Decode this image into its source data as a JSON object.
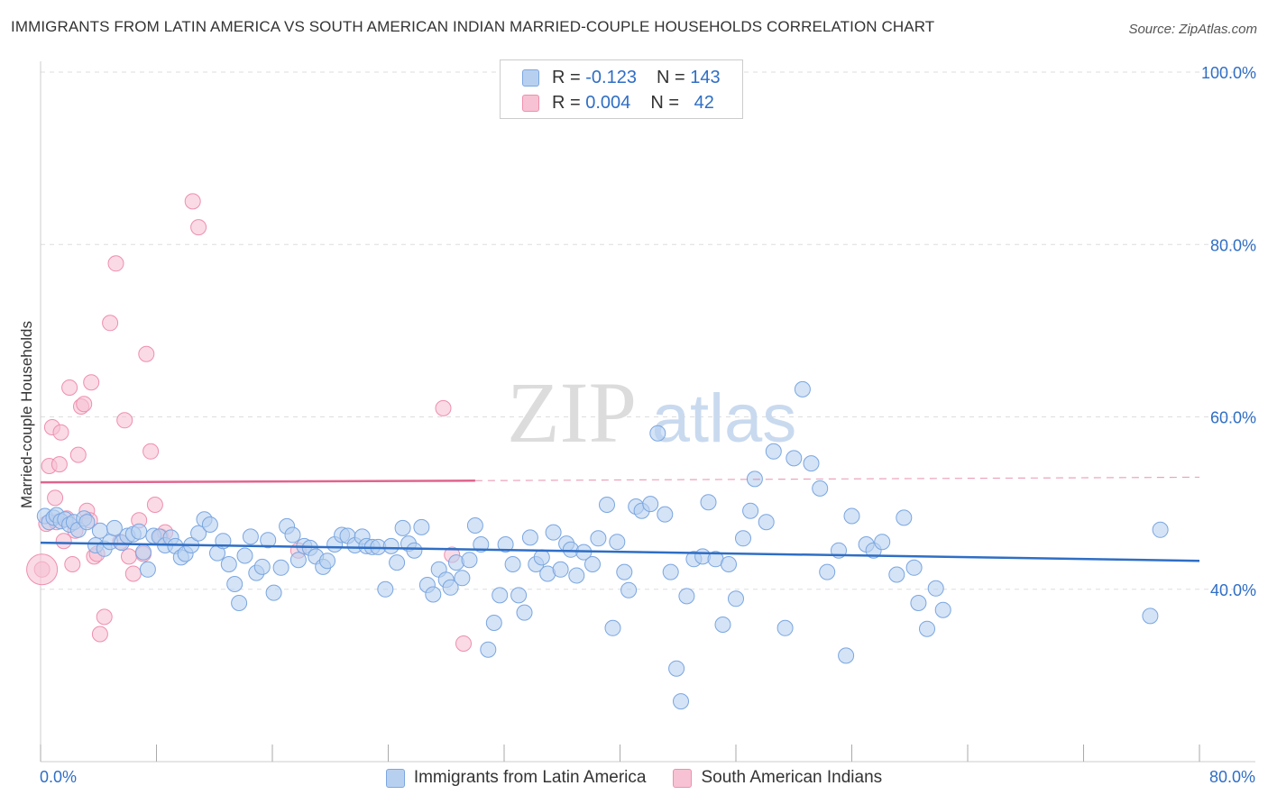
{
  "title": "IMMIGRANTS FROM LATIN AMERICA VS SOUTH AMERICAN INDIAN MARRIED-COUPLE HOUSEHOLDS CORRELATION CHART",
  "source": "Source: ZipAtlas.com",
  "watermark": {
    "zip": "ZIP",
    "atlas": "atlas"
  },
  "legend_top": {
    "rows": [
      {
        "r_label": "R =",
        "r_value": "-0.123",
        "n_label": "N =",
        "n_value": "143"
      },
      {
        "r_label": "R =",
        "r_value": "0.004",
        "n_label": "N =",
        "n_value": "42"
      }
    ]
  },
  "colors": {
    "blue_fill": "#b8d0f0",
    "blue_stroke": "#7aa6e0",
    "blue_line": "#2f6ec5",
    "pink_fill": "#f7c2d3",
    "pink_stroke": "#ee8fae",
    "pink_line": "#e0648e",
    "grid": "#dddddd",
    "tick_text": "#2f6ec5"
  },
  "chart_data": {
    "type": "scatter",
    "title": "IMMIGRANTS FROM LATIN AMERICA VS SOUTH AMERICAN INDIAN MARRIED-COUPLE HOUSEHOLDS CORRELATION CHART",
    "xlabel": "",
    "ylabel": "Married-couple Households",
    "xlim": [
      0,
      80
    ],
    "ylim": [
      20,
      100
    ],
    "x_tick_labels": [
      "0.0%",
      "80.0%"
    ],
    "y_ticks": [
      40,
      60,
      80,
      100
    ],
    "y_tick_labels": [
      "40.0%",
      "60.0%",
      "80.0%",
      "100.0%"
    ],
    "grid": true,
    "legend_position": "bottom",
    "series": [
      {
        "name": "Immigrants from Latin America",
        "color": "#7aa6e0",
        "r": -0.123,
        "n": 143,
        "trend": {
          "x": [
            0,
            80
          ],
          "y": [
            45.4,
            43.3
          ]
        },
        "points": [
          [
            0.3,
            48.5
          ],
          [
            0.6,
            47.8
          ],
          [
            0.9,
            48.3
          ],
          [
            1.1,
            48.6
          ],
          [
            1.4,
            47.9
          ],
          [
            1.7,
            48.1
          ],
          [
            2.0,
            47.5
          ],
          [
            2.3,
            47.8
          ],
          [
            2.6,
            46.9
          ],
          [
            3.0,
            48.2
          ],
          [
            3.2,
            47.8
          ],
          [
            3.8,
            45.1
          ],
          [
            4.1,
            46.8
          ],
          [
            4.4,
            44.7
          ],
          [
            4.8,
            45.5
          ],
          [
            5.1,
            47.1
          ],
          [
            5.6,
            45.4
          ],
          [
            6.0,
            46.2
          ],
          [
            6.4,
            46.4
          ],
          [
            6.8,
            46.7
          ],
          [
            7.1,
            44.3
          ],
          [
            7.4,
            42.3
          ],
          [
            7.8,
            46.2
          ],
          [
            8.2,
            46.1
          ],
          [
            8.6,
            45.1
          ],
          [
            9.0,
            46.0
          ],
          [
            9.3,
            45.0
          ],
          [
            9.7,
            43.7
          ],
          [
            10.0,
            44.1
          ],
          [
            10.4,
            45.1
          ],
          [
            10.9,
            46.5
          ],
          [
            11.3,
            48.1
          ],
          [
            11.7,
            47.5
          ],
          [
            12.2,
            44.2
          ],
          [
            12.6,
            45.6
          ],
          [
            13.0,
            42.9
          ],
          [
            13.4,
            40.6
          ],
          [
            13.7,
            38.4
          ],
          [
            14.1,
            43.9
          ],
          [
            14.5,
            46.1
          ],
          [
            14.9,
            41.9
          ],
          [
            15.3,
            42.6
          ],
          [
            15.7,
            45.7
          ],
          [
            16.1,
            39.6
          ],
          [
            16.6,
            42.5
          ],
          [
            17.0,
            47.3
          ],
          [
            17.4,
            46.3
          ],
          [
            17.8,
            43.4
          ],
          [
            18.2,
            45.0
          ],
          [
            18.6,
            44.8
          ],
          [
            19.0,
            43.8
          ],
          [
            19.5,
            42.6
          ],
          [
            19.8,
            43.3
          ],
          [
            20.3,
            45.2
          ],
          [
            20.8,
            46.3
          ],
          [
            21.2,
            46.2
          ],
          [
            21.7,
            45.1
          ],
          [
            22.2,
            46.1
          ],
          [
            22.5,
            45.0
          ],
          [
            22.9,
            44.9
          ],
          [
            23.3,
            44.9
          ],
          [
            23.8,
            40.0
          ],
          [
            24.2,
            45.0
          ],
          [
            24.6,
            43.1
          ],
          [
            25.0,
            47.1
          ],
          [
            25.4,
            45.3
          ],
          [
            25.8,
            44.5
          ],
          [
            26.3,
            47.2
          ],
          [
            26.7,
            40.5
          ],
          [
            27.1,
            39.4
          ],
          [
            27.5,
            42.3
          ],
          [
            28.0,
            41.1
          ],
          [
            28.3,
            40.2
          ],
          [
            28.7,
            43.1
          ],
          [
            29.1,
            41.3
          ],
          [
            29.6,
            43.4
          ],
          [
            30.0,
            47.4
          ],
          [
            30.4,
            45.2
          ],
          [
            30.9,
            33.0
          ],
          [
            31.3,
            36.1
          ],
          [
            31.7,
            39.3
          ],
          [
            32.1,
            45.2
          ],
          [
            32.6,
            42.9
          ],
          [
            33.0,
            39.3
          ],
          [
            33.4,
            37.3
          ],
          [
            33.8,
            46.0
          ],
          [
            34.2,
            42.9
          ],
          [
            34.6,
            43.7
          ],
          [
            35.0,
            41.8
          ],
          [
            35.4,
            46.6
          ],
          [
            35.9,
            42.3
          ],
          [
            36.3,
            45.3
          ],
          [
            36.6,
            44.6
          ],
          [
            37.0,
            41.6
          ],
          [
            37.5,
            44.3
          ],
          [
            38.1,
            42.9
          ],
          [
            38.5,
            45.9
          ],
          [
            39.1,
            49.8
          ],
          [
            39.5,
            35.5
          ],
          [
            39.8,
            45.5
          ],
          [
            40.3,
            42.0
          ],
          [
            40.6,
            39.9
          ],
          [
            41.1,
            49.6
          ],
          [
            41.5,
            49.1
          ],
          [
            42.1,
            49.9
          ],
          [
            42.6,
            58.1
          ],
          [
            43.1,
            48.7
          ],
          [
            43.5,
            42.0
          ],
          [
            43.9,
            30.8
          ],
          [
            44.2,
            27.0
          ],
          [
            44.6,
            39.2
          ],
          [
            45.1,
            43.5
          ],
          [
            45.7,
            43.8
          ],
          [
            46.1,
            50.1
          ],
          [
            46.6,
            43.5
          ],
          [
            47.1,
            35.9
          ],
          [
            47.5,
            42.9
          ],
          [
            48.0,
            38.9
          ],
          [
            48.5,
            45.9
          ],
          [
            49.0,
            49.1
          ],
          [
            49.3,
            52.8
          ],
          [
            50.1,
            47.8
          ],
          [
            50.6,
            56.0
          ],
          [
            51.4,
            35.5
          ],
          [
            52.0,
            55.2
          ],
          [
            52.6,
            63.2
          ],
          [
            53.2,
            54.6
          ],
          [
            53.8,
            51.7
          ],
          [
            54.3,
            42.0
          ],
          [
            55.1,
            44.5
          ],
          [
            55.6,
            32.3
          ],
          [
            56.0,
            48.5
          ],
          [
            57.0,
            45.2
          ],
          [
            57.5,
            44.5
          ],
          [
            58.1,
            45.5
          ],
          [
            59.1,
            41.7
          ],
          [
            59.6,
            48.3
          ],
          [
            60.3,
            42.5
          ],
          [
            60.6,
            38.4
          ],
          [
            61.2,
            35.4
          ],
          [
            61.8,
            40.1
          ],
          [
            62.3,
            37.6
          ],
          [
            76.6,
            36.9
          ],
          [
            77.3,
            46.9
          ]
        ]
      },
      {
        "name": "South American Indians",
        "color": "#ee8fae",
        "r": 0.004,
        "n": 42,
        "trend": {
          "x": [
            0,
            30
          ],
          "y": [
            52.4,
            52.6
          ]
        },
        "trend_dashed": {
          "x": [
            30,
            80
          ],
          "y": [
            52.6,
            53.0
          ]
        },
        "points": [
          [
            0.1,
            42.3
          ],
          [
            0.4,
            47.6
          ],
          [
            0.6,
            54.3
          ],
          [
            0.8,
            58.8
          ],
          [
            1.0,
            50.6
          ],
          [
            1.1,
            47.8
          ],
          [
            1.3,
            54.5
          ],
          [
            1.4,
            58.2
          ],
          [
            1.6,
            45.6
          ],
          [
            1.8,
            48.2
          ],
          [
            2.0,
            63.4
          ],
          [
            2.2,
            42.9
          ],
          [
            2.4,
            46.8
          ],
          [
            2.6,
            55.6
          ],
          [
            2.8,
            61.2
          ],
          [
            3.0,
            61.5
          ],
          [
            3.2,
            49.1
          ],
          [
            3.4,
            48.0
          ],
          [
            3.5,
            64.0
          ],
          [
            3.7,
            43.8
          ],
          [
            3.9,
            44.1
          ],
          [
            4.1,
            34.8
          ],
          [
            4.4,
            36.8
          ],
          [
            4.8,
            70.9
          ],
          [
            5.2,
            77.8
          ],
          [
            5.5,
            45.5
          ],
          [
            5.8,
            59.6
          ],
          [
            6.1,
            43.8
          ],
          [
            6.4,
            41.8
          ],
          [
            6.8,
            48.0
          ],
          [
            7.1,
            44.1
          ],
          [
            7.3,
            67.3
          ],
          [
            7.6,
            56.0
          ],
          [
            7.9,
            49.8
          ],
          [
            8.3,
            46.1
          ],
          [
            8.6,
            46.6
          ],
          [
            10.5,
            85.0
          ],
          [
            10.9,
            82.0
          ],
          [
            17.8,
            44.5
          ],
          [
            27.8,
            61.0
          ],
          [
            28.4,
            44.0
          ],
          [
            29.2,
            33.7
          ]
        ]
      }
    ]
  }
}
